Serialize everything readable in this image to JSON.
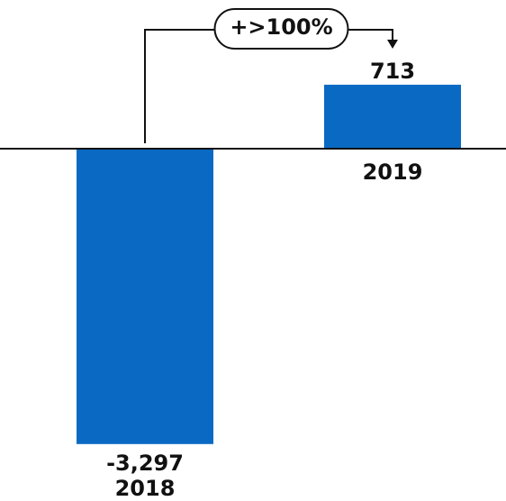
{
  "chart_data": {
    "type": "bar",
    "categories": [
      "2018",
      "2019"
    ],
    "values": [
      -3297,
      713
    ],
    "value_labels": [
      "-3,297",
      "713"
    ],
    "color": "#0a6ac3",
    "ylim": [
      -3500,
      1000
    ],
    "annotation": "+>100%"
  }
}
